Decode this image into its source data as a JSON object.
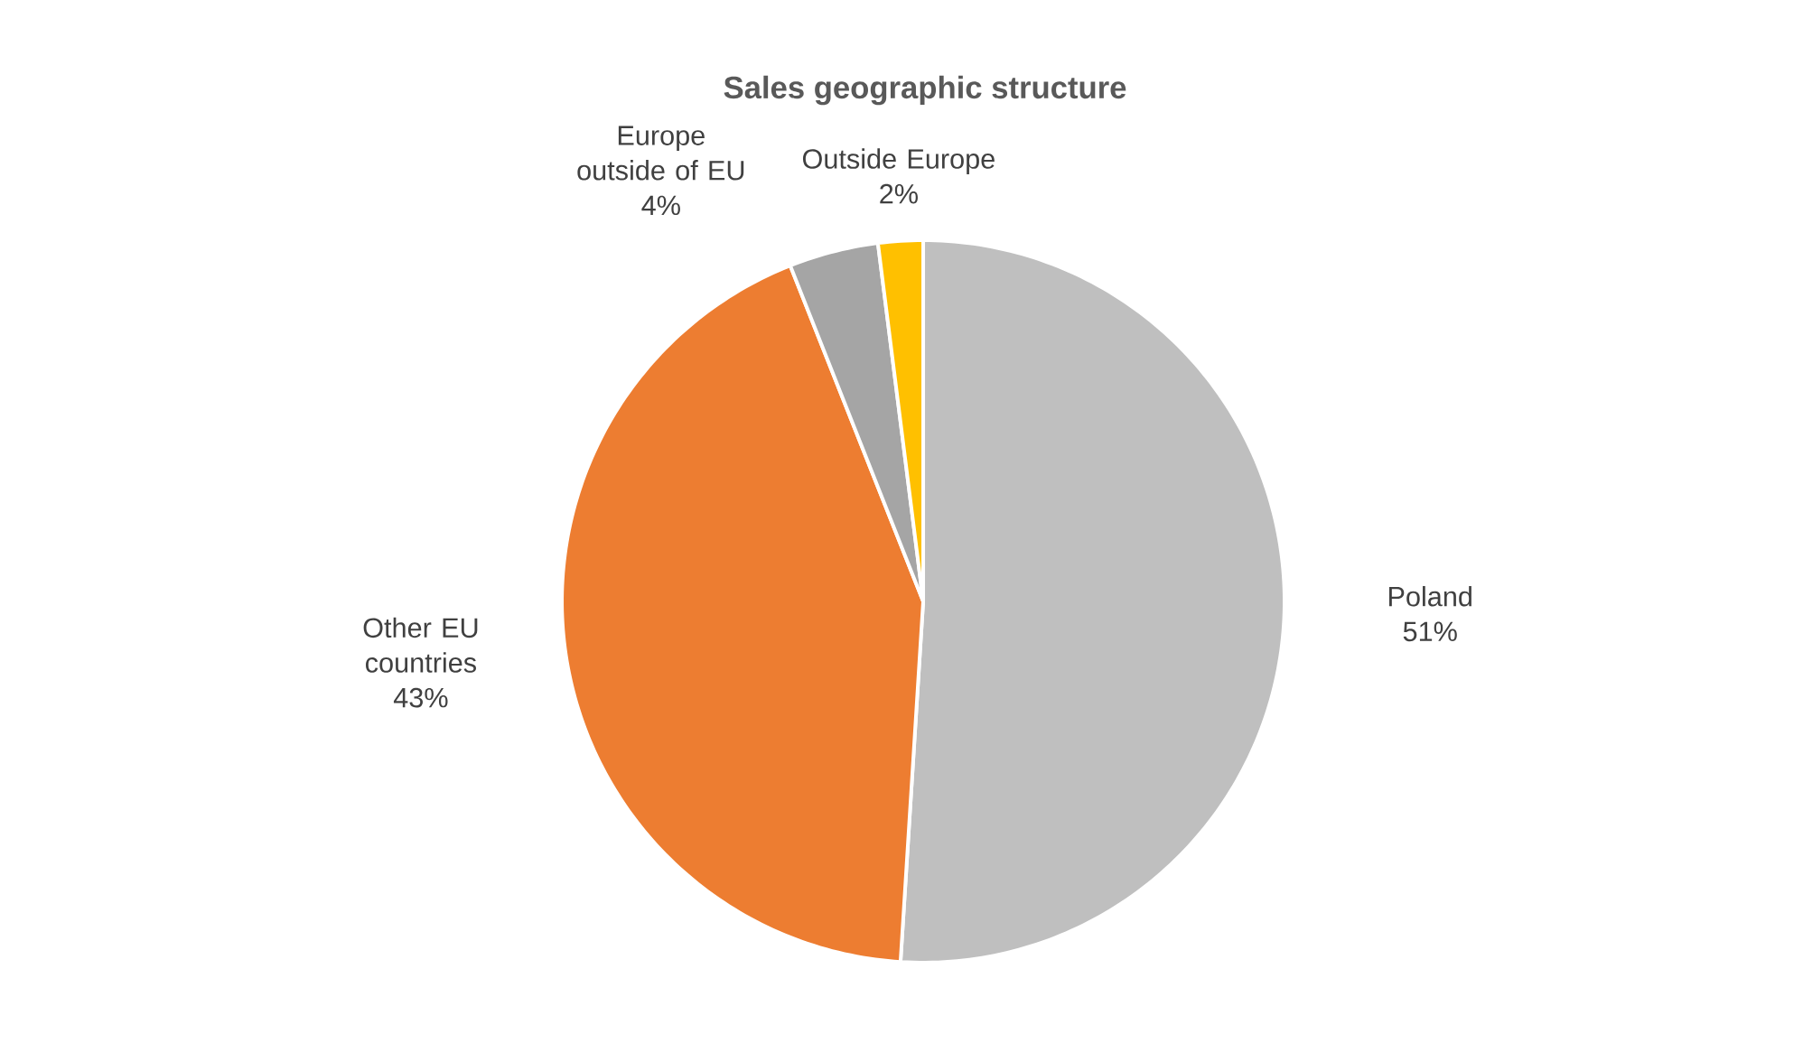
{
  "chart_data": {
    "type": "pie",
    "title": "Sales geographic structure",
    "categories": [
      "Poland",
      "Other EU countries",
      "Europe outside of EU",
      "Outside Europe"
    ],
    "values": [
      51,
      43,
      4,
      2
    ],
    "value_labels": [
      "51%",
      "43%",
      "4%",
      "2%"
    ],
    "colors": [
      "#bfbfbf",
      "#ed7d31",
      "#a5a5a5",
      "#ffc000"
    ]
  }
}
